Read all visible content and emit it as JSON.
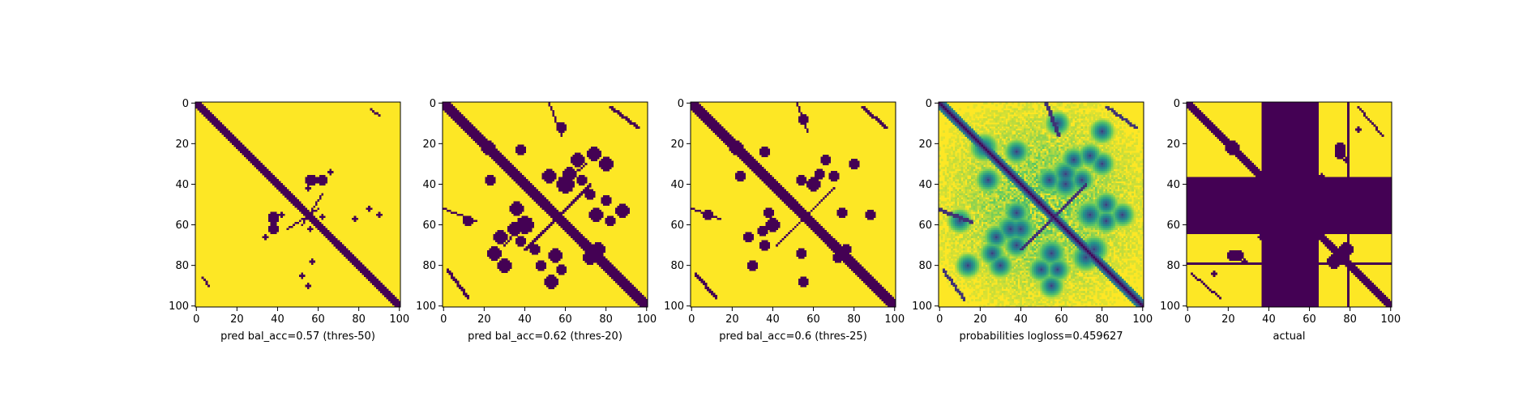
{
  "chart_data": [
    {
      "type": "heatmap",
      "title": "",
      "xlabel": "pred bal_acc=0.57 (thres-50)",
      "xlim": [
        0,
        101
      ],
      "ylim": [
        101,
        0
      ],
      "xticks": [
        0,
        20,
        40,
        60,
        80,
        100
      ],
      "yticks": [
        0,
        20,
        40,
        60,
        80,
        100
      ],
      "tick_labels": [
        "0",
        "20",
        "40",
        "60",
        "80",
        "100"
      ],
      "kind": "binary",
      "colors": {
        "background": "#fde725",
        "contact": "#440154"
      },
      "features": {
        "diagonal_halfwidth": 2,
        "bands": [
          {
            "i0": 3,
            "i1": 6,
            "j0": 86,
            "j1": 90,
            "width": 1
          },
          {
            "i0": 36,
            "i1": 37,
            "j0": 55,
            "j1": 57,
            "width": 1
          },
          {
            "i0": 52,
            "i1": 62,
            "j0": 60,
            "j1": 45,
            "width": 1
          }
        ],
        "blobs": [
          [
            38,
            56,
            2
          ],
          [
            38,
            62,
            2
          ],
          [
            57,
            38,
            2
          ],
          [
            55,
            42,
            1
          ],
          [
            66,
            34,
            1
          ],
          [
            62,
            56,
            1
          ],
          [
            78,
            57,
            1
          ],
          [
            55,
            90,
            1
          ],
          [
            85,
            52,
            1
          ]
        ]
      }
    },
    {
      "type": "heatmap",
      "title": "",
      "xlabel": "pred bal_acc=0.62 (thres-20)",
      "xlim": [
        0,
        101
      ],
      "ylim": [
        101,
        0
      ],
      "xticks": [
        0,
        20,
        40,
        60,
        80,
        100
      ],
      "yticks": [
        0,
        20,
        40,
        60,
        80,
        100
      ],
      "tick_labels": [
        "0",
        "20",
        "40",
        "60",
        "80",
        "100"
      ],
      "kind": "binary",
      "colors": {
        "background": "#fde725",
        "contact": "#440154"
      },
      "features": {
        "diagonal_halfwidth": 3,
        "bands": [
          {
            "i0": 0,
            "i1": 16,
            "j0": 52,
            "j1": 58,
            "width": 1
          },
          {
            "i0": 2,
            "i1": 12,
            "j0": 82,
            "j1": 95,
            "width": 2
          },
          {
            "i0": 30,
            "i1": 40,
            "j0": 70,
            "j1": 58,
            "width": 1
          },
          {
            "i0": 52,
            "i1": 72,
            "j0": 60,
            "j1": 40,
            "width": 2
          }
        ],
        "blobs": [
          [
            22,
            22,
            3
          ],
          [
            23,
            38,
            2
          ],
          [
            36,
            52,
            3
          ],
          [
            40,
            60,
            4
          ],
          [
            38,
            68,
            2
          ],
          [
            48,
            80,
            2
          ],
          [
            53,
            88,
            3
          ],
          [
            58,
            12,
            2
          ],
          [
            62,
            35,
            3
          ],
          [
            66,
            28,
            3
          ],
          [
            72,
            45,
            2
          ],
          [
            75,
            55,
            3
          ],
          [
            76,
            72,
            3
          ],
          [
            80,
            30,
            3
          ],
          [
            82,
            58,
            2
          ],
          [
            25,
            74,
            3
          ]
        ]
      }
    },
    {
      "type": "heatmap",
      "title": "",
      "xlabel": "pred bal_acc=0.6 (thres-25)",
      "xlim": [
        0,
        101
      ],
      "ylim": [
        101,
        0
      ],
      "xticks": [
        0,
        20,
        40,
        60,
        80,
        100
      ],
      "yticks": [
        0,
        20,
        40,
        60,
        80,
        100
      ],
      "tick_labels": [
        "0",
        "20",
        "40",
        "60",
        "80",
        "100"
      ],
      "kind": "binary",
      "colors": {
        "background": "#fde725",
        "contact": "#440154"
      },
      "features": {
        "diagonal_halfwidth": 3,
        "bands": [
          {
            "i0": 0,
            "i1": 14,
            "j0": 52,
            "j1": 57,
            "width": 1
          },
          {
            "i0": 2,
            "i1": 12,
            "j0": 84,
            "j1": 95,
            "width": 2
          },
          {
            "i0": 52,
            "i1": 70,
            "j0": 60,
            "j1": 42,
            "width": 1
          }
        ],
        "blobs": [
          [
            22,
            22,
            3
          ],
          [
            24,
            36,
            2
          ],
          [
            38,
            54,
            2
          ],
          [
            40,
            60,
            3
          ],
          [
            36,
            70,
            2
          ],
          [
            55,
            88,
            2
          ],
          [
            55,
            8,
            2
          ],
          [
            63,
            35,
            2
          ],
          [
            66,
            28,
            2
          ],
          [
            74,
            54,
            2
          ],
          [
            76,
            72,
            2
          ],
          [
            80,
            30,
            2
          ]
        ]
      }
    },
    {
      "type": "heatmap",
      "title": "",
      "xlabel": "probabilities logloss=0.459627",
      "xlim": [
        0,
        101
      ],
      "ylim": [
        101,
        0
      ],
      "xticks": [
        0,
        20,
        40,
        60,
        80,
        100
      ],
      "yticks": [
        0,
        20,
        40,
        60,
        80,
        100
      ],
      "tick_labels": [
        "0",
        "20",
        "40",
        "60",
        "80",
        "100"
      ],
      "kind": "probability",
      "colors": {
        "background": "#fde725",
        "contact": "#440154"
      },
      "features": {
        "diagonal_halfwidth": 3,
        "bands": [
          {
            "i0": 0,
            "i1": 16,
            "j0": 52,
            "j1": 58,
            "width": 2
          },
          {
            "i0": 2,
            "i1": 12,
            "j0": 82,
            "j1": 96,
            "width": 2
          },
          {
            "i0": 52,
            "i1": 72,
            "j0": 60,
            "j1": 40,
            "width": 2
          }
        ],
        "blobs": [
          [
            22,
            22,
            4
          ],
          [
            24,
            38,
            3
          ],
          [
            38,
            54,
            3
          ],
          [
            40,
            62,
            4
          ],
          [
            38,
            70,
            3
          ],
          [
            50,
            82,
            3
          ],
          [
            55,
            90,
            3
          ],
          [
            58,
            10,
            3
          ],
          [
            62,
            35,
            4
          ],
          [
            66,
            28,
            3
          ],
          [
            74,
            55,
            4
          ],
          [
            76,
            72,
            4
          ],
          [
            80,
            30,
            3
          ],
          [
            82,
            58,
            3
          ],
          [
            26,
            74,
            3
          ],
          [
            14,
            80,
            3
          ]
        ]
      }
    },
    {
      "type": "heatmap",
      "title": "",
      "xlabel": "actual",
      "xlim": [
        0,
        101
      ],
      "ylim": [
        101,
        0
      ],
      "xticks": [
        0,
        20,
        40,
        60,
        80,
        100
      ],
      "yticks": [
        0,
        20,
        40,
        60,
        80,
        100
      ],
      "tick_labels": [
        "0",
        "20",
        "40",
        "60",
        "80",
        "100"
      ],
      "kind": "binary",
      "colors": {
        "background": "#fde725",
        "contact": "#440154"
      },
      "features": {
        "diagonal_halfwidth": 2,
        "masked_rows": [
          37,
          64
        ],
        "masked_cols": [
          37,
          64
        ],
        "masked_lines": [
          79
        ],
        "bands": [
          {
            "i0": 2,
            "i1": 16,
            "j0": 84,
            "j1": 96,
            "width": 1
          }
        ],
        "blobs": [
          [
            22,
            22,
            3
          ],
          [
            25,
            75,
            2
          ],
          [
            28,
            78,
            1
          ],
          [
            36,
            66,
            1
          ],
          [
            72,
            78,
            3
          ],
          [
            75,
            22,
            2
          ],
          [
            84,
            13,
            1
          ]
        ]
      }
    }
  ]
}
